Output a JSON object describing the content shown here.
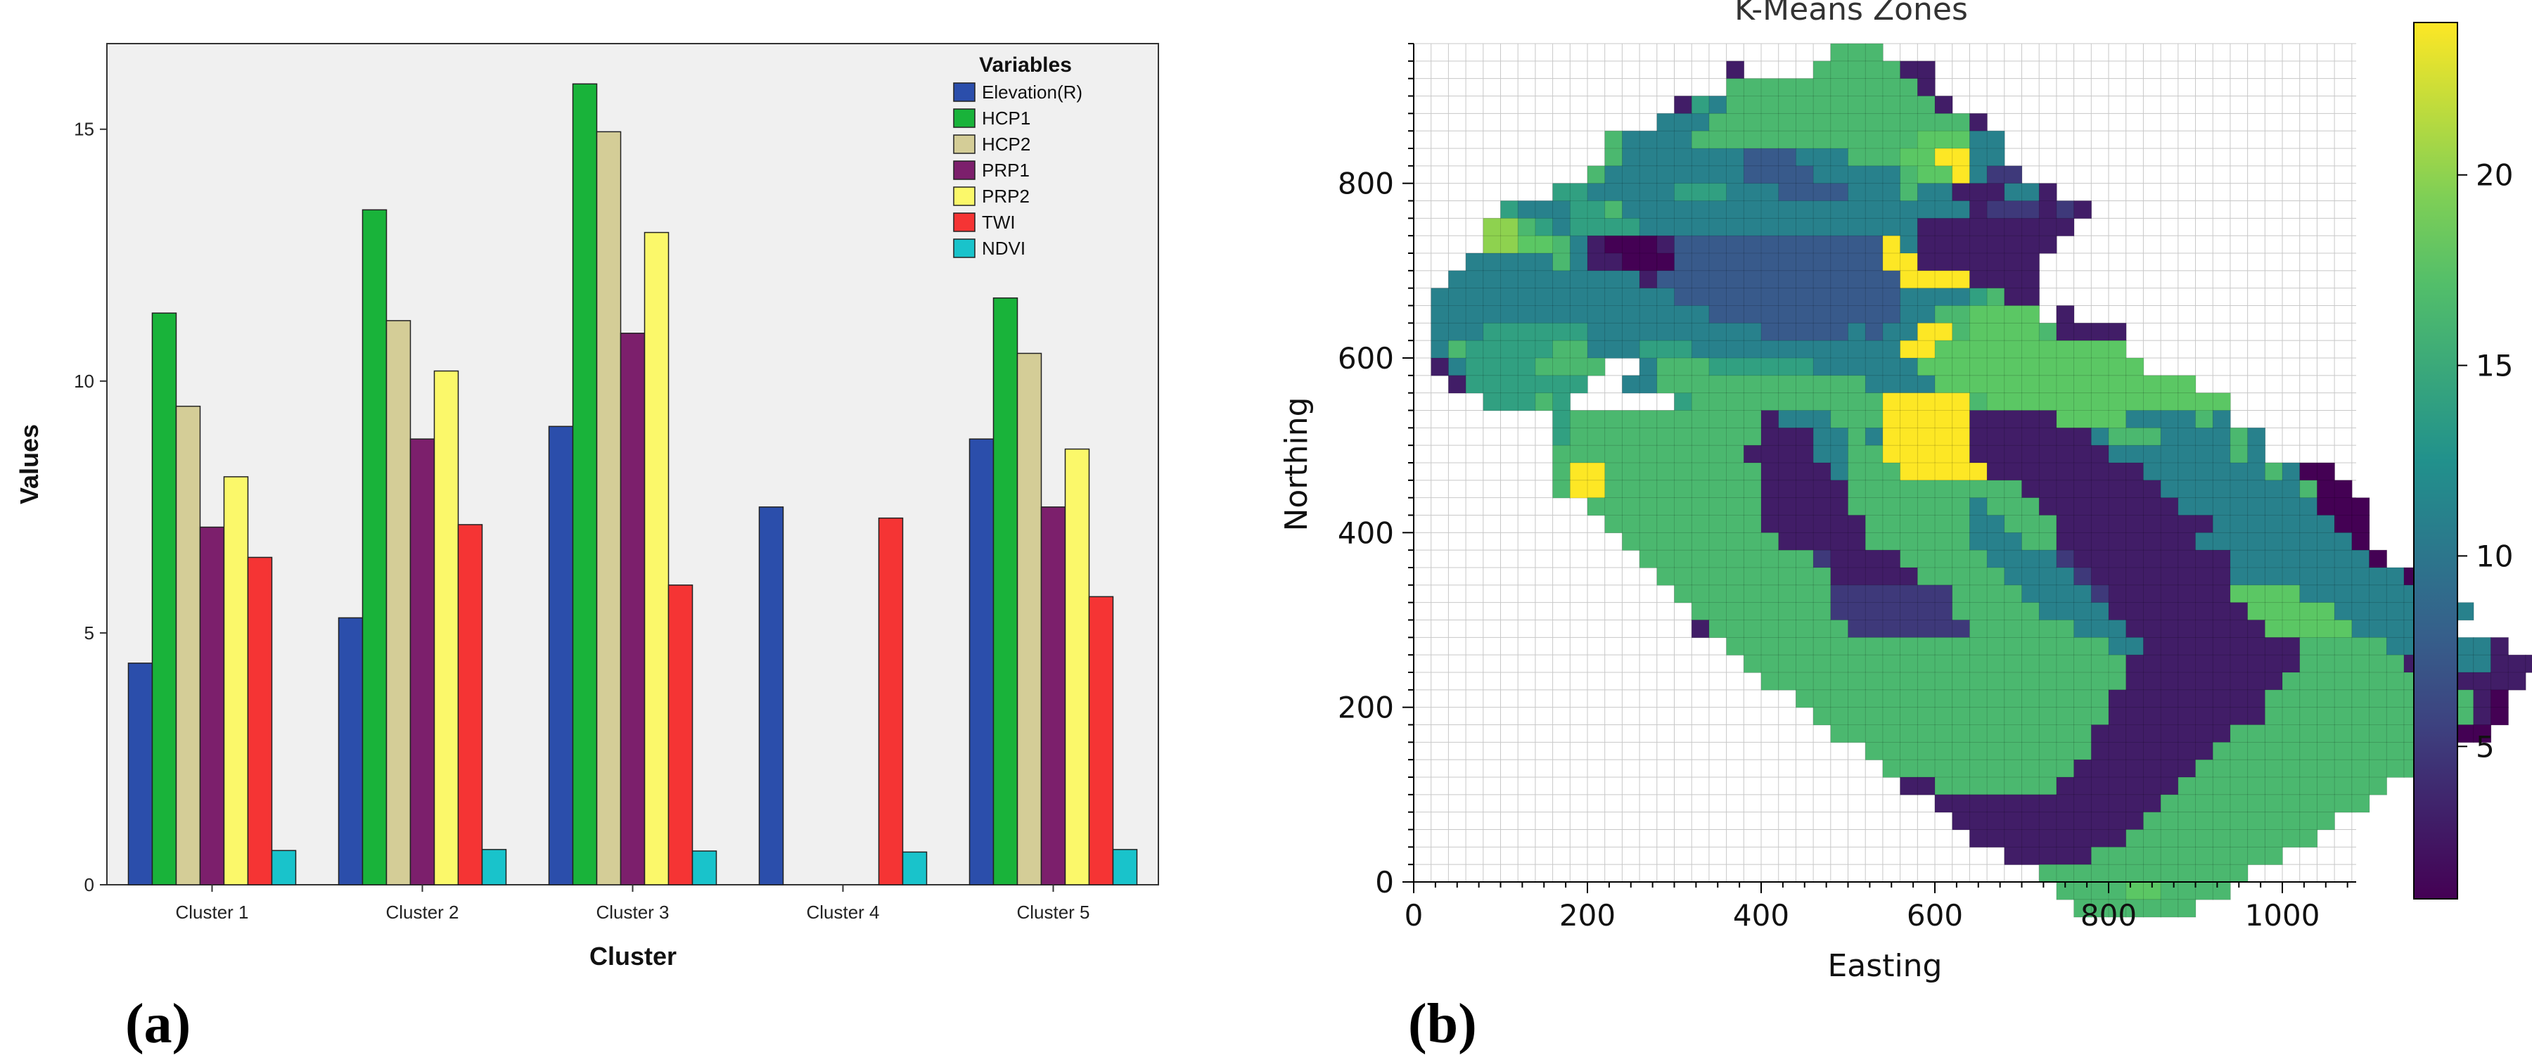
{
  "panels": {
    "a": "(a)",
    "b": "(b)"
  },
  "chart_data": [
    {
      "type": "bar",
      "title": "",
      "xlabel": "Cluster",
      "ylabel": "Values",
      "categories": [
        "Cluster 1",
        "Cluster 2",
        "Cluster 3",
        "Cluster 4",
        "Cluster 5"
      ],
      "ylim": [
        0,
        16.7
      ],
      "yticks": [
        0,
        5,
        10,
        15
      ],
      "legend_title": "Variables",
      "legend_position": "top-right",
      "series": [
        {
          "name": "Elevation(R)",
          "color": "#2b4eab",
          "values": [
            4.4,
            5.3,
            9.1,
            7.5,
            8.85
          ]
        },
        {
          "name": "HCP1",
          "color": "#19b33a",
          "values": [
            11.35,
            13.4,
            15.9,
            null,
            11.65
          ]
        },
        {
          "name": "HCP2",
          "color": "#d4cd97",
          "values": [
            9.5,
            11.2,
            14.95,
            null,
            10.55
          ]
        },
        {
          "name": "PRP1",
          "color": "#7c1f6c",
          "values": [
            7.1,
            8.85,
            10.95,
            null,
            7.5
          ]
        },
        {
          "name": "PRP2",
          "color": "#fbf86a",
          "values": [
            8.1,
            10.2,
            12.95,
            null,
            8.65
          ]
        },
        {
          "name": "TWI",
          "color": "#f53434",
          "values": [
            6.5,
            7.15,
            5.95,
            7.28,
            5.72
          ]
        },
        {
          "name": "NDVI",
          "color": "#19c3cb",
          "values": [
            0.68,
            0.7,
            0.67,
            0.65,
            0.7
          ]
        }
      ]
    },
    {
      "type": "heatmap",
      "title": "K-Means Zones",
      "xlabel": "Easting",
      "ylabel": "Northing",
      "xlim": [
        0,
        1085
      ],
      "ylim": [
        0,
        960
      ],
      "xticks": [
        0,
        200,
        400,
        600,
        800,
        1000
      ],
      "yticks": [
        0,
        200,
        400,
        600,
        800
      ],
      "colorbar": {
        "min": 1,
        "max": 24,
        "ticks": [
          5,
          10,
          15,
          20
        ],
        "colormap": "viridis"
      },
      "grid_step": 20,
      "x_origin": 0,
      "y_origin": 960,
      "cell_value_codes": {
        "a": 1,
        "b": 3,
        "c": 5,
        "d": 7.5,
        "e": 9,
        "f": 11,
        "g": 14,
        "h": 16.5,
        "i": 18,
        "j": 20,
        "k": 24
      },
      "rows": [
        "........................hhh.....................",
        "..................b....hhhhhbb..................",
        "..................hhhhhhhhhhhb..................",
        "...............bgfhhhhhhhhhhhhb.................",
        "..............fffhhhhhhhhhhhhhhhb...............",
        "...........hffffhhhhhhhhhhhhhiiiff..............",
        "...........hfffffffdddfffhhhiikkff..............",
        "..........hffffffffddddfffffhiikfcc.............",
        "........ggfffffgggfffddddfffhffbbbffb...........",
        ".....gfffgghffffffffffffffffffffbcccbcb.........",
        "....jjhgfggggffffffffffffffffbbbbbbbbb..........",
        "....jjiihfbaaabddddddddddddkfbbbbbbbb...........",
        "...fffffhfbbaaaddddddddddddkkbbbbbbb............",
        "..fffffffffffbddddddddddddddkkkkbbbb............",
        ".ffffffffffffffdddddddddddddffffghbb............",
        ".ffffffffffffffffdddddddddddffhhiiii.b..........",
        ".fffggggggffffffffffdddddfdffkkhiiiihbbbb.......",
        ".fhggggghhfffgggffffffffffffkkiiiiiiiiiii.......",
        ".bfgggghhhh..fhhhggggggffffffiiiiiiiiiiiii......",
        "..bggggggg..ffhhhhhhhhhhhhffffiiiiiiiiiiiiiii...",
        "....ggghg......ghhhhhhhhhhhkkkkkhiiiiiiiiiiiiii..",
        "........ghhhhhhhhhhhbfffhhhkkkkkbbbbbiiiiffffhf..",
        "........ghhhhhhhhhhhbbbffhfkkkkkbbbbbbbfhhhffffhf.",
        "........hhhhhhhhhhhbbbbffhhkkkkkbbbbbbbbfffffffhf.",
        "........hkkhhhhhhhhhbbbbfhhhkkkkkbbbbbbbbbfffffffhfaa",
        "........hkkhhhhhhhhhbbbbbhhhhhhhhhhbbbbbbbbffffffffhaa",
        "..........hhhhhhhhhhbbbbbhhhhhhhfhhhbbbbbbbbffffffffaaa",
        "...........hhhhhhhhhbbbbbbhhhhhhffhhhbbbbbbbbbfffffffaa",
        "............hhhhhhhhhbbbbbhhhhhhfffhhbbbbbbbbfffffffffa",
        ".............hhhhhhhhhhcbbbbhhhhhffffcbbbbbbbbbffffffffa",
        "..............hhhhhhhhhhbbbbbhhhhhffffcbbbbbbbbffffffffffa",
        "...............hhhhhhhhhccccccchhhhffffcbbbbbbbiiiiffffffff",
        "................hhhhhhhhccccccchhhhhffffbbbbbbbbiiiiiffffffff",
        "................bhhhhhhhhccccccchhhhhhfffbbbbbbbbiiiiiffffff",
        "..................hhhhhhhhhhhhhhhhhhhhhhffbbbbbbbbbhhhhhffffffb",
        "...................hhhhhhhhhhhhhhhhhhhhhhbbbbbbbbbbhhhhhhbffffbbb",
        "....................hhhhhhhhhhhhhhhhhhhhhbbbbbbbbbhhhhhhhhhhbbbb",
        "......................hhhhhhhhhhhhhhhhhhbbbbbbbbbhhhhhhhhhhhhba",
        ".......................hhhhhhhhhhhhhhhhhbbbbbbbbbhhhhhhhhhhhhba",
        "........................hhhhhhhhhhhhhhhbbbbbbbbhhhhhhhhhhhhhaa",
        "..........................hhhhhhhhhhhhhbbbbbbbhhhhhhhhhhhhh",
        "...........................hhhhhhhhhhhbbbbbbbhhhhhhhhhhhhh",
        "............................bbhhhhhhhbbbbbbbhhhhhhhhhhhh",
        "..............................bbbbbbbbbbbbbhhhhhhhhhhhh",
        "...............................bbbbbbbbbbbhhhhhhhhhhh",
        "................................bbbbbbbbbhhhhhhhhhhh",
        "..................................bbbbbhhhhhhhhhhh",
        "....................................hhhhhhhhhhhh",
        ".....................................hhhhiihhhh",
        "......................................hhhhhhh"
      ]
    }
  ]
}
